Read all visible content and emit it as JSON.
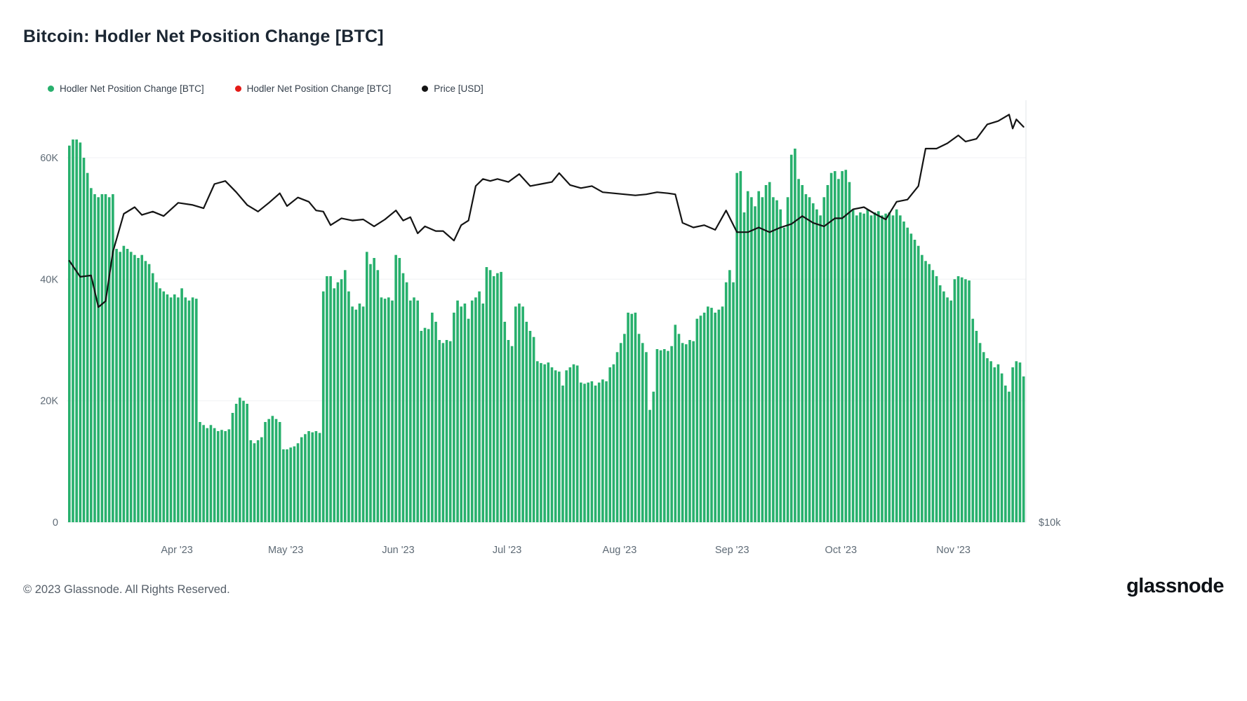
{
  "page": {
    "title": "Bitcoin: Hodler Net Position Change [BTC]",
    "footer": {
      "copyright": "© 2023 Glassnode. All Rights Reserved.",
      "brand": "glassnode"
    }
  },
  "legend": [
    {
      "label": "Hodler Net Position Change [BTC]",
      "color": "#28b06d"
    },
    {
      "label": "Hodler Net Position Change [BTC]",
      "color": "#e41b17"
    },
    {
      "label": "Price [USD]",
      "color": "#141414"
    }
  ],
  "chart_data": {
    "type": "bar",
    "title": "Bitcoin: Hodler Net Position Change [BTC]",
    "x_unit": "day",
    "x_range_visible": "early Mar 2023 to mid Nov 2023",
    "grid": "faint horizontal lines at labeled ticks",
    "legend_position": "top-left",
    "y_left": {
      "tick_labels": [
        "0",
        "20K",
        "40K",
        "60K"
      ],
      "tick_values": [
        0,
        20000,
        40000,
        60000
      ],
      "unit": "BTC"
    },
    "y_right": {
      "bottom_label": "$10k",
      "scale": "log"
    },
    "x_ticks": {
      "indices": [
        30,
        60,
        91,
        121,
        152,
        183,
        213,
        244
      ],
      "labels": [
        "Apr '23",
        "May '23",
        "Jun '23",
        "Jul '23",
        "Aug '23",
        "Sep '23",
        "Oct '23",
        "Nov '23"
      ]
    },
    "series": [
      {
        "name": "Hodler Net Position Change [BTC]",
        "type": "bar",
        "color": "#28b06d",
        "unit": "thousand BTC per day",
        "values_k": [
          62,
          63,
          63,
          62.5,
          60,
          57.5,
          55,
          54,
          53.5,
          54,
          54,
          53.5,
          54,
          45,
          44.5,
          45.5,
          45,
          44.5,
          44,
          43.5,
          44,
          43,
          42.5,
          41,
          39.5,
          38.5,
          38,
          37.5,
          37,
          37.5,
          37,
          38.5,
          37,
          36.5,
          37,
          36.8,
          16.5,
          16,
          15.5,
          16,
          15.5,
          15,
          15.2,
          15,
          15.3,
          18,
          19.5,
          20.5,
          20,
          19.5,
          13.5,
          13,
          13.5,
          14,
          16.5,
          17,
          17.5,
          17,
          16.5,
          12,
          12,
          12.3,
          12.5,
          13,
          14,
          14.5,
          15,
          14.8,
          15,
          14.7,
          38,
          40.5,
          40.5,
          38.5,
          39.5,
          40,
          41.5,
          38,
          35.5,
          35,
          36,
          35.5,
          44.5,
          42.5,
          43.5,
          41.5,
          37,
          36.8,
          37,
          36.5,
          44,
          43.5,
          41,
          39.5,
          36.5,
          37,
          36.5,
          31.5,
          32,
          31.8,
          34.5,
          33,
          30,
          29.5,
          30,
          29.8,
          34.5,
          36.5,
          35.5,
          36,
          33.5,
          36.5,
          37,
          38,
          36,
          42,
          41.5,
          40.5,
          41,
          41.2,
          33,
          30,
          29,
          35.5,
          36,
          35.5,
          33,
          31.5,
          30.5,
          26.5,
          26.2,
          26,
          26.3,
          25.5,
          25,
          24.8,
          22.5,
          25,
          25.5,
          26,
          25.8,
          23,
          22.8,
          23,
          23.2,
          22.5,
          23,
          23.5,
          23.2,
          25.5,
          26,
          28,
          29.5,
          31,
          34.5,
          34.3,
          34.5,
          31,
          29.5,
          28,
          18.5,
          21.5,
          28.5,
          28.3,
          28.5,
          28.2,
          29,
          32.5,
          31,
          29.5,
          29.3,
          30,
          29.8,
          33.5,
          34,
          34.5,
          35.5,
          35.3,
          34.5,
          35,
          35.5,
          39.5,
          41.5,
          39.5,
          57.5,
          57.8,
          51,
          54.5,
          53.5,
          52,
          54.5,
          53.5,
          55.5,
          56,
          53.5,
          53,
          51.5,
          48.5,
          53.5,
          60.5,
          61.5,
          56.5,
          55.5,
          54,
          53.5,
          52.5,
          51.5,
          50.5,
          53.5,
          55.5,
          57.5,
          57.8,
          56.5,
          57.8,
          58,
          56,
          51.5,
          50.5,
          51,
          50.8,
          51.5,
          50.5,
          51,
          51.2,
          50.5,
          50.8,
          51,
          50.5,
          51.5,
          50.5,
          49.5,
          48.5,
          47.5,
          46.5,
          45.5,
          44,
          43,
          42.5,
          41.5,
          40.5,
          39,
          38,
          37,
          36.5,
          40,
          40.5,
          40.3,
          40,
          39.8,
          33.5,
          31.5,
          29.5,
          28,
          27,
          26.5,
          25.5,
          26,
          24.5,
          22.5,
          21.5,
          25.5,
          26.5,
          26.3,
          24
        ]
      },
      {
        "name": "Price [USD]",
        "type": "line",
        "color": "#141414",
        "unit": "thousand USD",
        "points_index_priceK": [
          [
            0,
            23.5
          ],
          [
            3,
            22.3
          ],
          [
            6,
            22.4
          ],
          [
            8,
            20.2
          ],
          [
            10,
            20.6
          ],
          [
            12,
            24.2
          ],
          [
            15,
            27.4
          ],
          [
            18,
            28.0
          ],
          [
            20,
            27.3
          ],
          [
            23,
            27.6
          ],
          [
            26,
            27.2
          ],
          [
            30,
            28.4
          ],
          [
            34,
            28.2
          ],
          [
            37,
            27.9
          ],
          [
            40,
            30.2
          ],
          [
            43,
            30.5
          ],
          [
            46,
            29.4
          ],
          [
            49,
            28.2
          ],
          [
            52,
            27.6
          ],
          [
            55,
            28.4
          ],
          [
            58,
            29.3
          ],
          [
            60,
            28.1
          ],
          [
            63,
            28.9
          ],
          [
            66,
            28.5
          ],
          [
            68,
            27.7
          ],
          [
            70,
            27.6
          ],
          [
            72,
            26.4
          ],
          [
            75,
            27.0
          ],
          [
            78,
            26.8
          ],
          [
            81,
            26.9
          ],
          [
            84,
            26.3
          ],
          [
            87,
            26.9
          ],
          [
            90,
            27.7
          ],
          [
            92,
            26.8
          ],
          [
            94,
            27.1
          ],
          [
            96,
            25.7
          ],
          [
            98,
            26.3
          ],
          [
            101,
            25.9
          ],
          [
            103,
            25.9
          ],
          [
            106,
            25.1
          ],
          [
            108,
            26.4
          ],
          [
            110,
            26.8
          ],
          [
            112,
            30.0
          ],
          [
            114,
            30.7
          ],
          [
            116,
            30.5
          ],
          [
            118,
            30.7
          ],
          [
            121,
            30.4
          ],
          [
            124,
            31.2
          ],
          [
            127,
            30.0
          ],
          [
            130,
            30.2
          ],
          [
            133,
            30.4
          ],
          [
            135,
            31.3
          ],
          [
            138,
            30.1
          ],
          [
            141,
            29.8
          ],
          [
            144,
            30.0
          ],
          [
            147,
            29.4
          ],
          [
            150,
            29.3
          ],
          [
            153,
            29.2
          ],
          [
            156,
            29.1
          ],
          [
            159,
            29.2
          ],
          [
            162,
            29.4
          ],
          [
            165,
            29.3
          ],
          [
            167,
            29.2
          ],
          [
            169,
            26.6
          ],
          [
            172,
            26.2
          ],
          [
            175,
            26.4
          ],
          [
            178,
            26.0
          ],
          [
            181,
            27.7
          ],
          [
            184,
            25.8
          ],
          [
            187,
            25.8
          ],
          [
            190,
            26.2
          ],
          [
            193,
            25.8
          ],
          [
            196,
            26.2
          ],
          [
            199,
            26.5
          ],
          [
            202,
            27.2
          ],
          [
            205,
            26.6
          ],
          [
            208,
            26.3
          ],
          [
            211,
            27.0
          ],
          [
            213,
            27.0
          ],
          [
            216,
            27.8
          ],
          [
            219,
            28.0
          ],
          [
            222,
            27.4
          ],
          [
            225,
            26.9
          ],
          [
            228,
            28.5
          ],
          [
            231,
            28.7
          ],
          [
            234,
            30.0
          ],
          [
            236,
            33.9
          ],
          [
            239,
            33.9
          ],
          [
            242,
            34.5
          ],
          [
            245,
            35.4
          ],
          [
            247,
            34.7
          ],
          [
            250,
            35.0
          ],
          [
            253,
            36.7
          ],
          [
            256,
            37.1
          ],
          [
            259,
            37.9
          ],
          [
            260,
            36.2
          ],
          [
            261,
            37.3
          ],
          [
            263,
            36.4
          ]
        ]
      }
    ]
  }
}
